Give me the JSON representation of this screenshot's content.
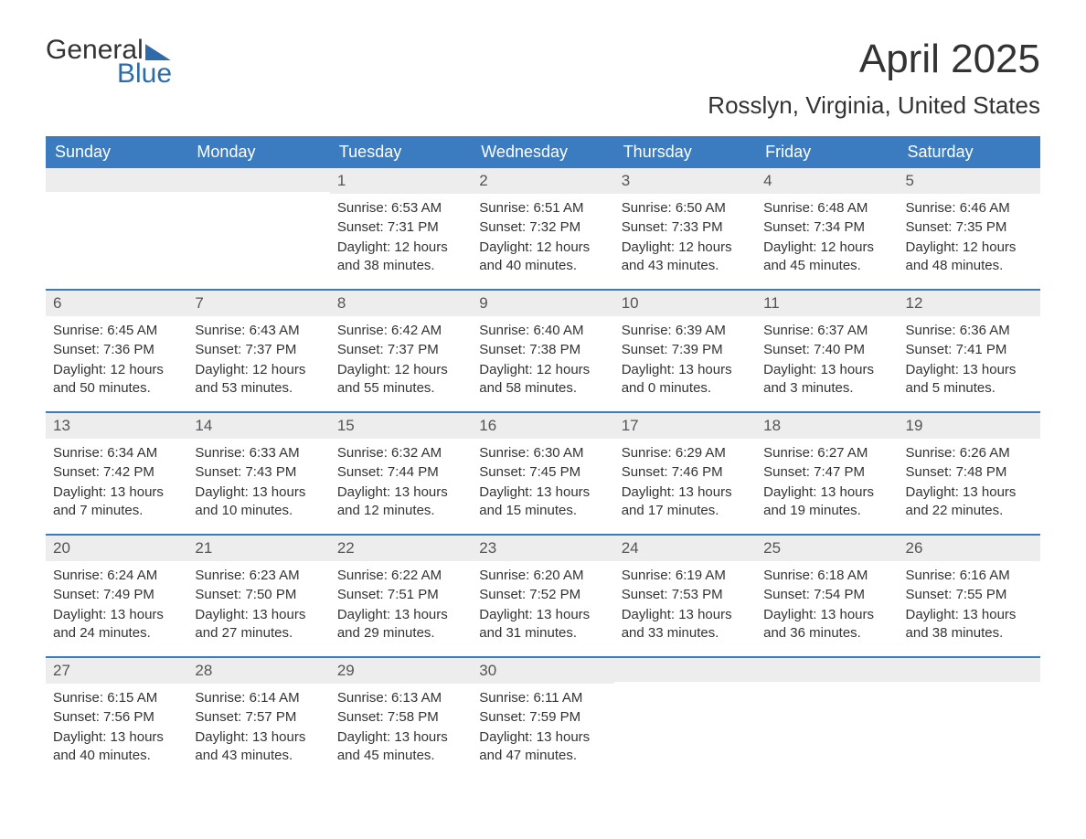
{
  "logo": {
    "line1": "General",
    "line2": "Blue"
  },
  "title": "April 2025",
  "location": "Rosslyn, Virginia, United States",
  "colors": {
    "header_bg": "#3a7cbf",
    "header_text": "#ffffff",
    "daynum_bg": "#ededed",
    "text": "#333333",
    "logo_blue": "#2d6ca8"
  },
  "labels": {
    "sunrise": "Sunrise:",
    "sunset": "Sunset:",
    "daylight": "Daylight:"
  },
  "dayNames": [
    "Sunday",
    "Monday",
    "Tuesday",
    "Wednesday",
    "Thursday",
    "Friday",
    "Saturday"
  ],
  "weeks": [
    [
      {
        "n": "",
        "empty": true
      },
      {
        "n": "",
        "empty": true
      },
      {
        "n": "1",
        "sr": "6:53 AM",
        "ss": "7:31 PM",
        "dl": "12 hours and 38 minutes."
      },
      {
        "n": "2",
        "sr": "6:51 AM",
        "ss": "7:32 PM",
        "dl": "12 hours and 40 minutes."
      },
      {
        "n": "3",
        "sr": "6:50 AM",
        "ss": "7:33 PM",
        "dl": "12 hours and 43 minutes."
      },
      {
        "n": "4",
        "sr": "6:48 AM",
        "ss": "7:34 PM",
        "dl": "12 hours and 45 minutes."
      },
      {
        "n": "5",
        "sr": "6:46 AM",
        "ss": "7:35 PM",
        "dl": "12 hours and 48 minutes."
      }
    ],
    [
      {
        "n": "6",
        "sr": "6:45 AM",
        "ss": "7:36 PM",
        "dl": "12 hours and 50 minutes."
      },
      {
        "n": "7",
        "sr": "6:43 AM",
        "ss": "7:37 PM",
        "dl": "12 hours and 53 minutes."
      },
      {
        "n": "8",
        "sr": "6:42 AM",
        "ss": "7:37 PM",
        "dl": "12 hours and 55 minutes."
      },
      {
        "n": "9",
        "sr": "6:40 AM",
        "ss": "7:38 PM",
        "dl": "12 hours and 58 minutes."
      },
      {
        "n": "10",
        "sr": "6:39 AM",
        "ss": "7:39 PM",
        "dl": "13 hours and 0 minutes."
      },
      {
        "n": "11",
        "sr": "6:37 AM",
        "ss": "7:40 PM",
        "dl": "13 hours and 3 minutes."
      },
      {
        "n": "12",
        "sr": "6:36 AM",
        "ss": "7:41 PM",
        "dl": "13 hours and 5 minutes."
      }
    ],
    [
      {
        "n": "13",
        "sr": "6:34 AM",
        "ss": "7:42 PM",
        "dl": "13 hours and 7 minutes."
      },
      {
        "n": "14",
        "sr": "6:33 AM",
        "ss": "7:43 PM",
        "dl": "13 hours and 10 minutes."
      },
      {
        "n": "15",
        "sr": "6:32 AM",
        "ss": "7:44 PM",
        "dl": "13 hours and 12 minutes."
      },
      {
        "n": "16",
        "sr": "6:30 AM",
        "ss": "7:45 PM",
        "dl": "13 hours and 15 minutes."
      },
      {
        "n": "17",
        "sr": "6:29 AM",
        "ss": "7:46 PM",
        "dl": "13 hours and 17 minutes."
      },
      {
        "n": "18",
        "sr": "6:27 AM",
        "ss": "7:47 PM",
        "dl": "13 hours and 19 minutes."
      },
      {
        "n": "19",
        "sr": "6:26 AM",
        "ss": "7:48 PM",
        "dl": "13 hours and 22 minutes."
      }
    ],
    [
      {
        "n": "20",
        "sr": "6:24 AM",
        "ss": "7:49 PM",
        "dl": "13 hours and 24 minutes."
      },
      {
        "n": "21",
        "sr": "6:23 AM",
        "ss": "7:50 PM",
        "dl": "13 hours and 27 minutes."
      },
      {
        "n": "22",
        "sr": "6:22 AM",
        "ss": "7:51 PM",
        "dl": "13 hours and 29 minutes."
      },
      {
        "n": "23",
        "sr": "6:20 AM",
        "ss": "7:52 PM",
        "dl": "13 hours and 31 minutes."
      },
      {
        "n": "24",
        "sr": "6:19 AM",
        "ss": "7:53 PM",
        "dl": "13 hours and 33 minutes."
      },
      {
        "n": "25",
        "sr": "6:18 AM",
        "ss": "7:54 PM",
        "dl": "13 hours and 36 minutes."
      },
      {
        "n": "26",
        "sr": "6:16 AM",
        "ss": "7:55 PM",
        "dl": "13 hours and 38 minutes."
      }
    ],
    [
      {
        "n": "27",
        "sr": "6:15 AM",
        "ss": "7:56 PM",
        "dl": "13 hours and 40 minutes."
      },
      {
        "n": "28",
        "sr": "6:14 AM",
        "ss": "7:57 PM",
        "dl": "13 hours and 43 minutes."
      },
      {
        "n": "29",
        "sr": "6:13 AM",
        "ss": "7:58 PM",
        "dl": "13 hours and 45 minutes."
      },
      {
        "n": "30",
        "sr": "6:11 AM",
        "ss": "7:59 PM",
        "dl": "13 hours and 47 minutes."
      },
      {
        "n": "",
        "empty": true
      },
      {
        "n": "",
        "empty": true
      },
      {
        "n": "",
        "empty": true
      }
    ]
  ]
}
